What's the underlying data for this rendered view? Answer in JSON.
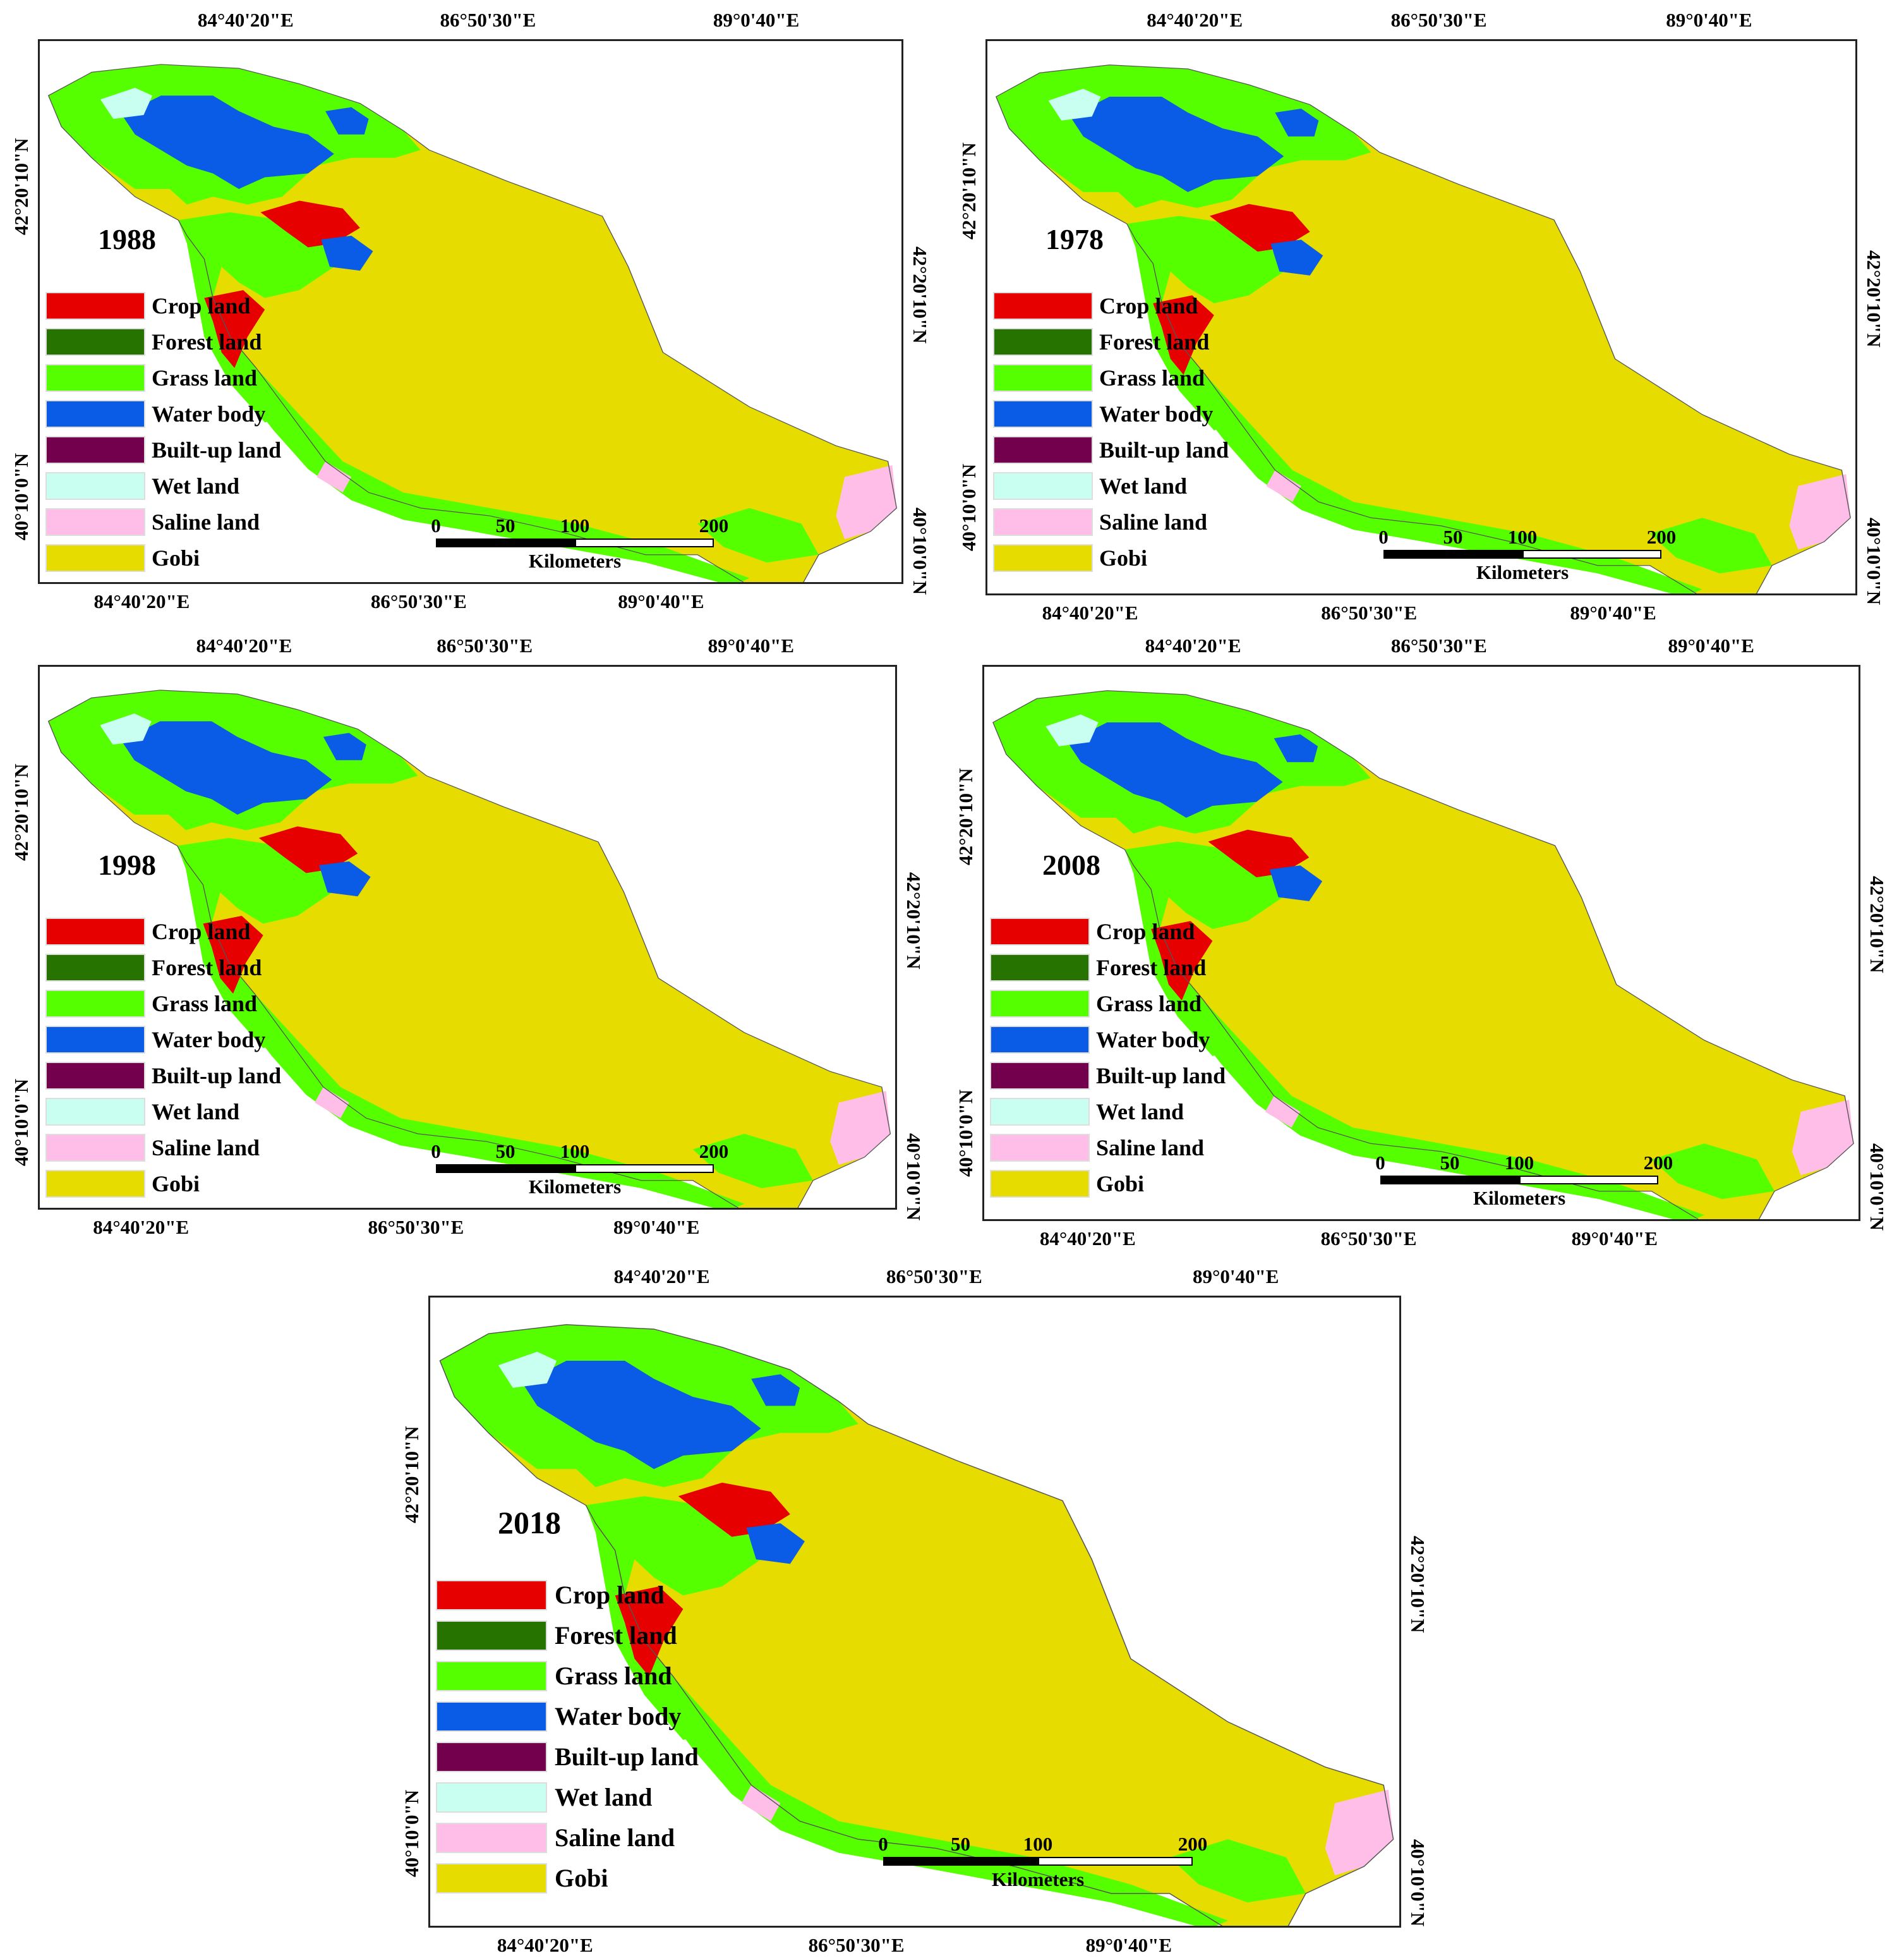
{
  "colors": {
    "crop": "#e60000",
    "forest": "#267300",
    "grass": "#55ff00",
    "water": "#0a5ce6",
    "builtup": "#73004c",
    "wet": "#c8fff0",
    "saline": "#ffbee8",
    "gobi": "#e6dc00"
  },
  "axes": {
    "lon1": "84°40'20\"E",
    "lon2": "86°50'30\"E",
    "lon3": "89°0'40\"E",
    "lat1": "42°20'10\"N",
    "lat2": "40°10'0\"N"
  },
  "legend": [
    {
      "label": "Crop land",
      "color_key": "crop"
    },
    {
      "label": "Forest land",
      "color_key": "forest"
    },
    {
      "label": "Grass land",
      "color_key": "grass"
    },
    {
      "label": "Water body",
      "color_key": "water"
    },
    {
      "label": "Built-up land",
      "color_key": "builtup"
    },
    {
      "label": "Wet land",
      "color_key": "wet"
    },
    {
      "label": "Saline land",
      "color_key": "saline"
    },
    {
      "label": "Gobi",
      "color_key": "gobi"
    }
  ],
  "scale": {
    "ticks": [
      "0",
      "50",
      "100",
      "200"
    ],
    "unit": "Kilometers"
  },
  "panels": [
    {
      "year": "1988"
    },
    {
      "year": "1978"
    },
    {
      "year": "1998"
    },
    {
      "year": "2008"
    },
    {
      "year": "2018"
    }
  ]
}
